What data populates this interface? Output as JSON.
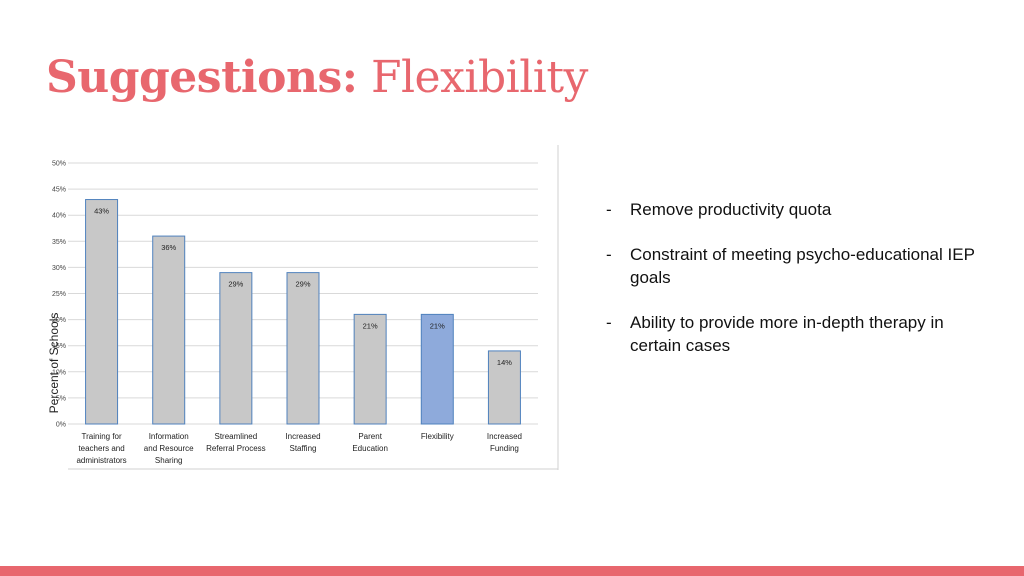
{
  "slide": {
    "title_bold": "Suggestions:",
    "title_light": "Flexibility",
    "accent_color": "#e8676e"
  },
  "bullets": [
    {
      "dash": "-",
      "text": "Remove productivity quota"
    },
    {
      "dash": "-",
      "text": "Constraint of meeting psycho-educational IEP goals"
    },
    {
      "dash": "-",
      "text": "Ability to provide more in-depth therapy in certain cases"
    }
  ],
  "chart_data": {
    "type": "bar",
    "ylabel": "Percent of Schools",
    "xlabel": "",
    "ylim": [
      0,
      50
    ],
    "yticks": [
      "0%",
      "5%",
      "10%",
      "15%",
      "20%",
      "25%",
      "30%",
      "35%",
      "40%",
      "45%",
      "50%"
    ],
    "grid": true,
    "categories": [
      [
        "Training for",
        "teachers and",
        "administrators"
      ],
      [
        "Information",
        "and Resource",
        "Sharing"
      ],
      [
        "Streamlined",
        "Referral Process"
      ],
      [
        "Increased",
        "Staffing"
      ],
      [
        "Parent",
        "Education"
      ],
      [
        "Flexibility"
      ],
      [
        "Increased",
        "Funding"
      ]
    ],
    "values": [
      43,
      36,
      29,
      29,
      21,
      21,
      14
    ],
    "value_labels": [
      "43%",
      "36%",
      "29%",
      "29%",
      "21%",
      "21%",
      "14%"
    ],
    "highlight_index": 5,
    "bar_color": "#c8c8c8",
    "highlight_color": "#8eaadb",
    "bar_edge_color": "#4f81bd"
  }
}
